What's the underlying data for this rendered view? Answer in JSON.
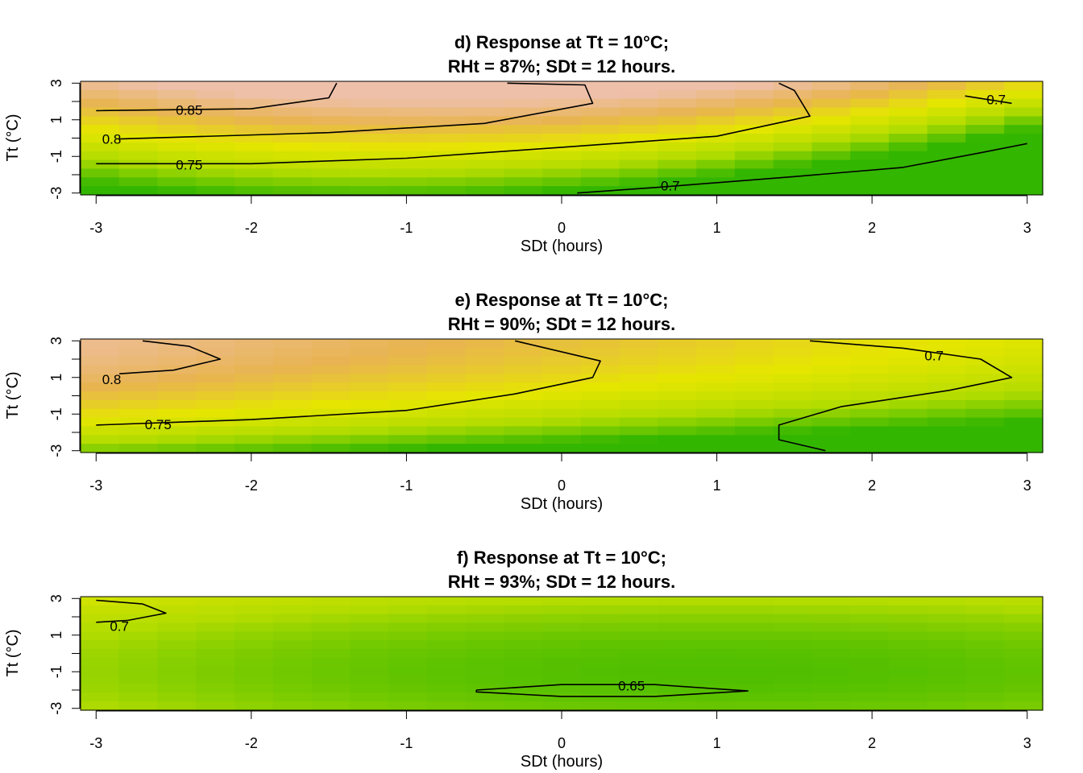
{
  "colors": {
    "palette": [
      "#33b600",
      "#b2dc00",
      "#e6e600",
      "#e8b450",
      "#eec0aa"
    ],
    "contour_line": "#000000"
  },
  "chart_data": [
    {
      "type": "heatmap",
      "title_line1": "d) Response at Tt = 10°C;",
      "title_line2": "RHt = 87%; SDt = 12 hours.",
      "xlabel": "SDt (hours)",
      "ylabel": "Tt (°C)",
      "xlim": [
        -3.1,
        3.1
      ],
      "ylim": [
        -3.1,
        3.1
      ],
      "x_ticks": [
        "-3",
        "-2",
        "-1",
        "0",
        "1",
        "2",
        "3"
      ],
      "y_ticks": [
        "-3",
        "-1",
        "1",
        "3"
      ],
      "grid": false,
      "field": {
        "base": 0.78,
        "gx": -0.02,
        "gy": 0.045,
        "qx": -0.01,
        "xy": 0.002,
        "qy": 0.0
      },
      "color_range": [
        0.65,
        0.88
      ],
      "contours": [
        {
          "level": "0.85",
          "points": [
            [
              -3.0,
              1.5
            ],
            [
              -2.0,
              1.6
            ],
            [
              -1.5,
              2.2
            ],
            [
              -1.45,
              3.0
            ]
          ],
          "label_at": [
            -2.4,
            1.55
          ]
        },
        {
          "level": "0.8",
          "points": [
            [
              -2.85,
              -0.05
            ],
            [
              -1.5,
              0.3
            ],
            [
              -0.5,
              0.8
            ],
            [
              0.2,
              1.9
            ],
            [
              0.15,
              2.9
            ],
            [
              -0.35,
              3.0
            ]
          ],
          "label_at": [
            -2.9,
            -0.05
          ]
        },
        {
          "level": "0.75",
          "points": [
            [
              -3.0,
              -1.4
            ],
            [
              -2.0,
              -1.4
            ],
            [
              -1.0,
              -1.1
            ],
            [
              0.0,
              -0.5
            ],
            [
              1.0,
              0.1
            ],
            [
              1.6,
              1.2
            ],
            [
              1.5,
              2.6
            ],
            [
              1.4,
              3.0
            ]
          ],
          "label_at": [
            -2.4,
            -1.45
          ]
        },
        {
          "level": "0.7",
          "points": [
            [
              0.1,
              -3.0
            ],
            [
              0.6,
              -2.7
            ],
            [
              1.5,
              -2.1
            ],
            [
              2.2,
              -1.6
            ],
            [
              2.7,
              -0.8
            ],
            [
              3.0,
              -0.3
            ]
          ],
          "label_at": [
            0.7,
            -2.6
          ]
        },
        {
          "level": "0.7",
          "points": [
            [
              2.6,
              2.3
            ],
            [
              2.9,
              1.9
            ]
          ],
          "label_at": [
            2.8,
            2.1
          ]
        }
      ]
    },
    {
      "type": "heatmap",
      "title_line1": "e) Response at Tt = 10°C;",
      "title_line2": "RHt = 90%; SDt = 12 hours.",
      "xlabel": "SDt (hours)",
      "ylabel": "Tt (°C)",
      "xlim": [
        -3.1,
        3.1
      ],
      "ylim": [
        -3.1,
        3.1
      ],
      "x_ticks": [
        "-3",
        "-2",
        "-1",
        "0",
        "1",
        "2",
        "3"
      ],
      "y_ticks": [
        "-3",
        "-1",
        "1",
        "3"
      ],
      "grid": false,
      "field": {
        "base": 0.755,
        "gx": -0.018,
        "gy": 0.03,
        "qx": 0.0,
        "xy": 0.0,
        "qy": -0.004
      },
      "color_range": [
        0.65,
        0.88
      ],
      "contours": [
        {
          "level": "0.8",
          "points": [
            [
              -2.85,
              1.2
            ],
            [
              -2.5,
              1.4
            ],
            [
              -2.2,
              2.0
            ],
            [
              -2.4,
              2.7
            ],
            [
              -2.7,
              3.0
            ]
          ],
          "label_at": [
            -2.9,
            0.9
          ]
        },
        {
          "level": "0.75",
          "points": [
            [
              -3.0,
              -1.6
            ],
            [
              -2.0,
              -1.3
            ],
            [
              -1.0,
              -0.8
            ],
            [
              -0.3,
              0.1
            ],
            [
              0.2,
              1.0
            ],
            [
              0.25,
              1.9
            ],
            [
              -0.3,
              3.0
            ]
          ],
          "label_at": [
            -2.6,
            -1.55
          ]
        },
        {
          "level": "0.7",
          "points": [
            [
              1.6,
              3.0
            ],
            [
              2.2,
              2.6
            ],
            [
              2.7,
              2.0
            ],
            [
              2.9,
              1.0
            ],
            [
              2.5,
              0.3
            ],
            [
              1.8,
              -0.6
            ],
            [
              1.4,
              -1.6
            ],
            [
              1.4,
              -2.4
            ],
            [
              1.7,
              -3.0
            ]
          ],
          "label_at": [
            2.4,
            2.2
          ]
        }
      ]
    },
    {
      "type": "heatmap",
      "title_line1": "f) Response at Tt = 10°C;",
      "title_line2": "RHt = 93%; SDt = 12 hours.",
      "xlabel": "SDt (hours)",
      "ylabel": "Tt (°C)",
      "xlim": [
        -3.1,
        3.1
      ],
      "ylim": [
        -3.1,
        3.1
      ],
      "x_ticks": [
        "-3",
        "-2",
        "-1",
        "0",
        "1",
        "2",
        "3"
      ],
      "y_ticks": [
        "-3",
        "-1",
        "1",
        "3"
      ],
      "grid": false,
      "field": {
        "base": 0.668,
        "gx": -0.004,
        "gy": 0.006,
        "qx": 0.002,
        "xy": 0.0,
        "qy": 0.003
      },
      "color_range": [
        0.65,
        0.88
      ],
      "contours": [
        {
          "level": "0.7",
          "points": [
            [
              -3.0,
              2.9
            ],
            [
              -2.7,
              2.7
            ],
            [
              -2.55,
              2.2
            ],
            [
              -2.8,
              1.8
            ],
            [
              -3.0,
              1.7
            ]
          ],
          "label_at": [
            -2.85,
            1.5
          ]
        },
        {
          "level": "0.65",
          "points": [
            [
              -0.55,
              -2.0
            ],
            [
              0.0,
              -1.7
            ],
            [
              0.6,
              -1.7
            ],
            [
              1.2,
              -2.05
            ],
            [
              0.6,
              -2.35
            ],
            [
              0.0,
              -2.35
            ],
            [
              -0.55,
              -2.1
            ],
            [
              -0.55,
              -2.0
            ]
          ],
          "label_at": [
            0.45,
            -1.75
          ]
        }
      ]
    }
  ]
}
